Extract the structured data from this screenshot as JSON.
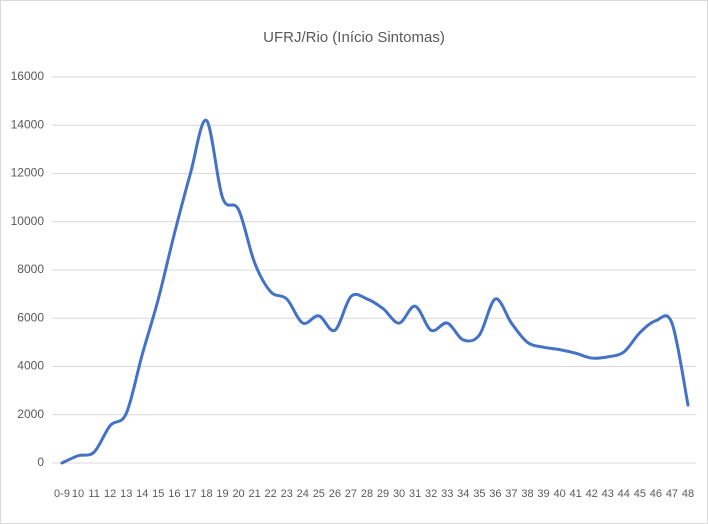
{
  "chart_data": {
    "type": "line",
    "title": "UFRJ/Rio (Início Sintomas)",
    "categories": [
      "0-9",
      "10",
      "11",
      "12",
      "13",
      "14",
      "15",
      "16",
      "17",
      "18",
      "19",
      "20",
      "21",
      "22",
      "23",
      "24",
      "25",
      "26",
      "27",
      "28",
      "29",
      "30",
      "31",
      "32",
      "33",
      "34",
      "35",
      "36",
      "37",
      "38",
      "39",
      "40",
      "41",
      "42",
      "43",
      "44",
      "45",
      "46",
      "47",
      "48"
    ],
    "series": [
      {
        "name": "UFRJ/Rio",
        "color": "#4472c4",
        "values": [
          0,
          300,
          450,
          1550,
          2050,
          4500,
          6800,
          9500,
          12000,
          14200,
          11000,
          10500,
          8300,
          7100,
          6800,
          5800,
          6100,
          5500,
          6900,
          6800,
          6400,
          5800,
          6500,
          5500,
          5800,
          5100,
          5300,
          6800,
          5800,
          5000,
          4800,
          4700,
          4550,
          4350,
          4400,
          4600,
          5400,
          5900,
          5800,
          2400
        ]
      }
    ],
    "ylim": [
      0,
      16000
    ],
    "yticks": [
      0,
      2000,
      4000,
      6000,
      8000,
      10000,
      12000,
      14000,
      16000
    ],
    "grid": true,
    "smooth": true
  }
}
